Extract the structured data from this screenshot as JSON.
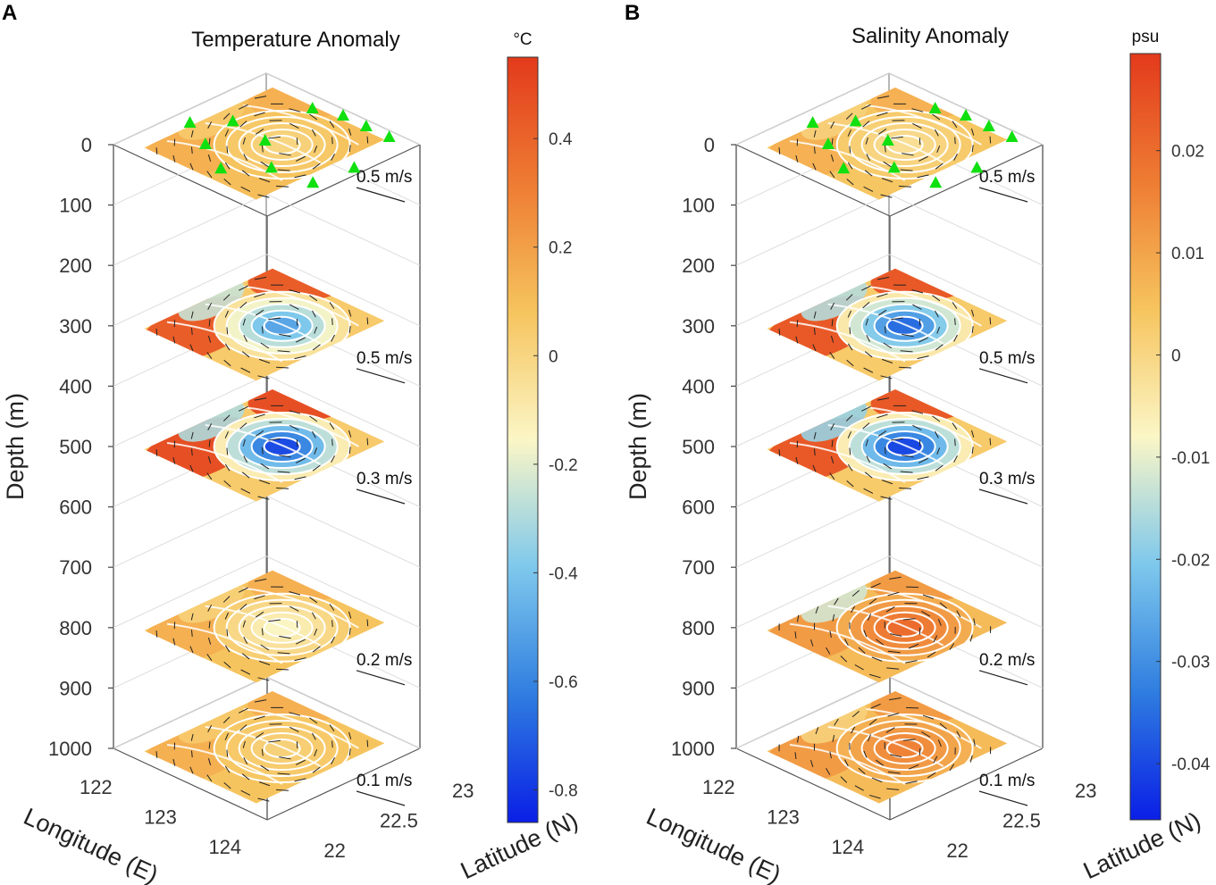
{
  "figure": {
    "panels": [
      "A",
      "B"
    ]
  },
  "chart_data": [
    {
      "type": "3d-contour-slices",
      "panel": "A",
      "title": "Temperature Anomaly",
      "variable": "temperature",
      "colorbar": {
        "unit": "°C",
        "range": [
          -0.86,
          0.55
        ],
        "ticks": [
          0.4,
          0.2,
          0,
          -0.2,
          -0.4,
          -0.6,
          -0.8
        ],
        "tick_labels": [
          "0.4",
          "0.2",
          "0",
          "-0.2",
          "-0.4",
          "-0.6",
          "-0.8"
        ],
        "colormap": [
          "#0a1fe6",
          "#2f7de0",
          "#7ec8ec",
          "#fbf6c6",
          "#f6c45e",
          "#ee7c33",
          "#e33a1c"
        ]
      },
      "zlabel": "Depth (m)",
      "xlabel": "Longitude (E)",
      "ylabel": "Latitude (N)",
      "depth_ticks": [
        0,
        100,
        200,
        300,
        400,
        500,
        600,
        700,
        800,
        900,
        1000
      ],
      "depth_tick_labels": [
        "0",
        "100",
        "200",
        "300",
        "400",
        "500",
        "600",
        "700",
        "800",
        "900",
        "1000"
      ],
      "lon_ticks": [
        "122",
        "123",
        "124"
      ],
      "lat_ticks": [
        "22",
        "22.5",
        "23"
      ],
      "slices": [
        {
          "depth": 0,
          "scale": "0.5 m/s",
          "core_anomaly": 0.0,
          "rim_anomaly": 0.1,
          "warm_edge": 0.15,
          "cold_edge": 0.05
        },
        {
          "depth": 300,
          "scale": "0.5 m/s",
          "core_anomaly": -0.5,
          "rim_anomaly": 0.05,
          "warm_edge": 0.45,
          "cold_edge": -0.25
        },
        {
          "depth": 500,
          "scale": "0.3 m/s",
          "core_anomaly": -0.75,
          "rim_anomaly": 0.05,
          "warm_edge": 0.5,
          "cold_edge": -0.3
        },
        {
          "depth": 800,
          "scale": "0.2 m/s",
          "core_anomaly": -0.15,
          "rim_anomaly": 0.08,
          "warm_edge": 0.15,
          "cold_edge": 0.02
        },
        {
          "depth": 1000,
          "scale": "0.1 m/s",
          "core_anomaly": 0.02,
          "rim_anomaly": 0.08,
          "warm_edge": 0.15,
          "cold_edge": 0.05
        }
      ]
    },
    {
      "type": "3d-contour-slices",
      "panel": "B",
      "title": "Salinity Anomaly",
      "variable": "salinity",
      "colorbar": {
        "unit": "psu",
        "range": [
          -0.0455,
          0.0295
        ],
        "ticks": [
          0.02,
          0.01,
          0,
          -0.01,
          -0.02,
          -0.03,
          -0.04
        ],
        "tick_labels": [
          "0.02",
          "0.01",
          "0",
          "-0.01",
          "-0.02",
          "-0.03",
          "-0.04"
        ],
        "colormap": [
          "#0a1fe6",
          "#2f7de0",
          "#7ec8ec",
          "#fbf6c6",
          "#f6c45e",
          "#ee7c33",
          "#e33a1c"
        ]
      },
      "zlabel": "Depth (m)",
      "xlabel": "Longitude (E)",
      "ylabel": "Latitude (N)",
      "depth_ticks": [
        0,
        100,
        200,
        300,
        400,
        500,
        600,
        700,
        800,
        900,
        1000
      ],
      "depth_tick_labels": [
        "0",
        "100",
        "200",
        "300",
        "400",
        "500",
        "600",
        "700",
        "800",
        "900",
        "1000"
      ],
      "lon_ticks": [
        "122",
        "123",
        "124"
      ],
      "lat_ticks": [
        "22",
        "22.5",
        "23"
      ],
      "slices": [
        {
          "depth": 0,
          "scale": "0.5 m/s",
          "core_anomaly": -0.002,
          "rim_anomaly": 0.004,
          "warm_edge": 0.008,
          "cold_edge": 0.001
        },
        {
          "depth": 300,
          "scale": "0.5 m/s",
          "core_anomaly": -0.035,
          "rim_anomaly": 0.003,
          "warm_edge": 0.025,
          "cold_edge": -0.015
        },
        {
          "depth": 500,
          "scale": "0.3 m/s",
          "core_anomaly": -0.04,
          "rim_anomaly": 0.003,
          "warm_edge": 0.025,
          "cold_edge": -0.018
        },
        {
          "depth": 800,
          "scale": "0.2 m/s",
          "core_anomaly": 0.02,
          "rim_anomaly": 0.006,
          "warm_edge": 0.012,
          "cold_edge": -0.012
        },
        {
          "depth": 1000,
          "scale": "0.1 m/s",
          "core_anomaly": 0.016,
          "rim_anomaly": 0.006,
          "warm_edge": 0.012,
          "cold_edge": 0.001
        }
      ]
    }
  ]
}
